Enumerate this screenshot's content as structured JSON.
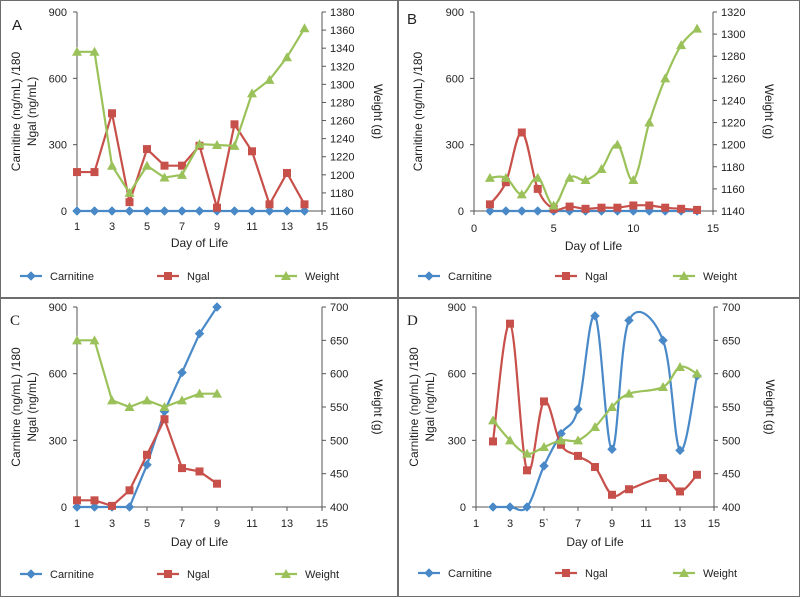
{
  "colors": {
    "carnitine": "#4a89c8",
    "ngal": "#c8504b",
    "weight": "#9bc25a",
    "axis": "#555555",
    "grid": "#d6d6d6",
    "border": "#6d6d6d"
  },
  "chart_data": [
    {
      "panel": "A",
      "type": "line",
      "x": [
        1,
        2,
        3,
        4,
        5,
        6,
        7,
        8,
        9,
        10,
        11,
        12,
        13,
        14
      ],
      "xlim": [
        1,
        15
      ],
      "xticks": [
        "1",
        "3",
        "5",
        "7",
        "9",
        "11",
        "13",
        "15"
      ],
      "xlabel": "Day of Life",
      "ylabel": "Carnitine (ng/mL) /180\nNgal (ng/mL)",
      "ylim": [
        0,
        900
      ],
      "yticks": [
        "0",
        "300",
        "600",
        "900"
      ],
      "y2label": "Weight (g)",
      "y2lim": [
        1160,
        1380
      ],
      "y2ticks": [
        "1160",
        "1180",
        "1200",
        "1220",
        "1240",
        "1260",
        "1280",
        "1300",
        "1320",
        "1340",
        "1360",
        "1380"
      ],
      "smooth": false,
      "legend_position": "bottom",
      "series": [
        {
          "name": "Carnitine",
          "axis": "left",
          "marker": "diamond",
          "x": [
            1,
            2,
            3,
            4,
            5,
            6,
            7,
            8,
            9,
            10,
            11,
            12,
            13,
            14
          ],
          "values": [
            0,
            0,
            0,
            0,
            0,
            0,
            0,
            0,
            0,
            0,
            0,
            0,
            0,
            0
          ]
        },
        {
          "name": "Ngal",
          "axis": "left",
          "marker": "square",
          "x": [
            1,
            2,
            3,
            4,
            5,
            6,
            7,
            8,
            9,
            10,
            11,
            12,
            13,
            14
          ],
          "values": [
            176,
            176,
            442,
            40,
            280,
            205,
            205,
            295,
            15,
            392,
            270,
            30,
            172,
            30
          ]
        },
        {
          "name": "Weight",
          "axis": "right",
          "marker": "triangle",
          "x": [
            1,
            2,
            3,
            4,
            5,
            6,
            7,
            8,
            9,
            10,
            11,
            12,
            13,
            14
          ],
          "values": [
            1336,
            1336,
            1210,
            1180,
            1210,
            1197,
            1200,
            1234,
            1233,
            1232,
            1290,
            1305,
            1330,
            1362
          ]
        }
      ]
    },
    {
      "panel": "B",
      "type": "line",
      "xlim": [
        0,
        15
      ],
      "xticks": [
        "0",
        "5",
        "10",
        "15"
      ],
      "xlabel": "Day of Life",
      "ylabel": "Carnitine (ng/mL) /180",
      "ylim": [
        0,
        900
      ],
      "yticks": [
        "0",
        "300",
        "600",
        "900"
      ],
      "y2label": "Weight (g)",
      "y2lim": [
        1140,
        1320
      ],
      "y2ticks": [
        "1140",
        "1160",
        "1180",
        "1200",
        "1220",
        "1240",
        "1260",
        "1280",
        "1300",
        "1320"
      ],
      "smooth": true,
      "legend_position": "bottom",
      "series": [
        {
          "name": "Carnitine",
          "axis": "left",
          "marker": "diamond",
          "x": [
            1,
            2,
            3,
            4,
            5,
            6,
            7,
            8,
            9,
            10,
            11,
            12,
            13,
            14
          ],
          "values": [
            0,
            0,
            0,
            0,
            0,
            0,
            0,
            0,
            0,
            0,
            0,
            0,
            0,
            0
          ]
        },
        {
          "name": "Ngal",
          "axis": "left",
          "marker": "square",
          "x": [
            1,
            2,
            3,
            4,
            5,
            6,
            7,
            8,
            9,
            10,
            11,
            12,
            13,
            14
          ],
          "values": [
            30,
            130,
            355,
            100,
            10,
            20,
            10,
            15,
            15,
            25,
            25,
            15,
            10,
            5
          ]
        },
        {
          "name": "Weight",
          "axis": "right",
          "marker": "triangle",
          "x": [
            1,
            2,
            3,
            4,
            5,
            6,
            7,
            8,
            9,
            10,
            11,
            12,
            13,
            14
          ],
          "values": [
            1170,
            1170,
            1155,
            1170,
            1145,
            1170,
            1168,
            1178,
            1200,
            1168,
            1220,
            1260,
            1290,
            1305
          ]
        }
      ]
    },
    {
      "panel": "C",
      "type": "line",
      "xlim": [
        1,
        15
      ],
      "xticks": [
        "1",
        "3",
        "5",
        "7",
        "9",
        "11",
        "13",
        "15"
      ],
      "xlabel": "Day of Life",
      "ylabel": "Carnitine (ng/mL) /180\nNgal (ng/mL)",
      "ylim": [
        0,
        900
      ],
      "yticks": [
        "0",
        "300",
        "600",
        "900"
      ],
      "y2label": "Weight (g)",
      "y2lim": [
        400,
        700
      ],
      "y2ticks": [
        "400",
        "450",
        "500",
        "550",
        "600",
        "650",
        "700"
      ],
      "smooth": false,
      "legend_position": "bottom",
      "series": [
        {
          "name": "Carnitine",
          "axis": "left",
          "marker": "diamond",
          "x": [
            1,
            2,
            3,
            4,
            5,
            6,
            7,
            8,
            9
          ],
          "values": [
            0,
            0,
            0,
            0,
            190,
            430,
            605,
            780,
            900
          ]
        },
        {
          "name": "Ngal",
          "axis": "left",
          "marker": "square",
          "x": [
            1,
            2,
            3,
            4,
            5,
            6,
            7,
            8,
            9
          ],
          "values": [
            30,
            30,
            5,
            75,
            235,
            395,
            175,
            160,
            105
          ]
        },
        {
          "name": "Weight",
          "axis": "right",
          "marker": "triangle",
          "x": [
            1,
            2,
            3,
            4,
            5,
            6,
            7,
            8,
            9
          ],
          "values": [
            650,
            650,
            560,
            550,
            560,
            550,
            560,
            570,
            570
          ]
        }
      ]
    },
    {
      "panel": "D",
      "type": "line",
      "xlim": [
        1,
        15
      ],
      "xticks": [
        "1",
        "3",
        "5`",
        "7",
        "9",
        "11",
        "13",
        "15"
      ],
      "xlabel": "Day of Life",
      "ylabel": "Carnitine (ng/mL) /180\nNgal (ng/mL)",
      "ylim": [
        0,
        900
      ],
      "yticks": [
        "0",
        "300",
        "600",
        "900"
      ],
      "y2label": "Weight (g)",
      "y2lim": [
        400,
        700
      ],
      "y2ticks": [
        "400",
        "450",
        "500",
        "550",
        "600",
        "650",
        "700"
      ],
      "smooth": true,
      "legend_position": "bottom",
      "series": [
        {
          "name": "Carnitine",
          "axis": "left",
          "marker": "diamond",
          "x": [
            2,
            3,
            4,
            5,
            6,
            7,
            8,
            9,
            10,
            12,
            13,
            14
          ],
          "values": [
            0,
            0,
            0,
            185,
            330,
            440,
            860,
            260,
            840,
            750,
            255,
            590
          ]
        },
        {
          "name": "Ngal",
          "axis": "left",
          "marker": "square",
          "x": [
            2,
            3,
            4,
            5,
            6,
            7,
            8,
            9,
            10,
            12,
            13,
            14
          ],
          "values": [
            295,
            825,
            165,
            475,
            280,
            230,
            180,
            55,
            80,
            130,
            70,
            145
          ]
        },
        {
          "name": "Weight",
          "axis": "right",
          "marker": "triangle",
          "x": [
            2,
            3,
            4,
            5,
            6,
            7,
            8,
            9,
            10,
            12,
            13,
            14
          ],
          "values": [
            530,
            500,
            480,
            490,
            500,
            500,
            520,
            550,
            570,
            580,
            610,
            600
          ]
        }
      ]
    }
  ]
}
